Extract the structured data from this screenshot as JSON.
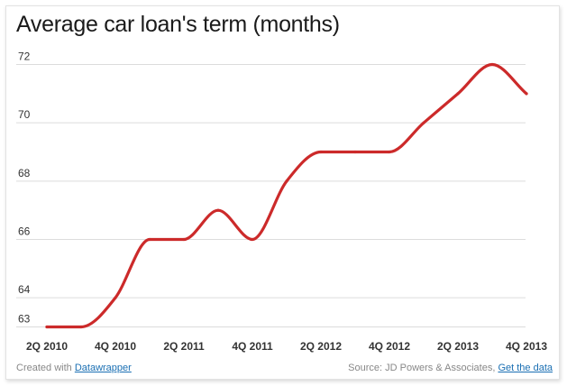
{
  "title": "Average car loan's term (months)",
  "chart_data": {
    "type": "line",
    "title": "Average car loan's term (months)",
    "xlabel": "",
    "ylabel": "",
    "ylim": [
      63,
      72.3
    ],
    "y_ticks": [
      63,
      64,
      66,
      68,
      70,
      72
    ],
    "x_tick_labels": [
      "2Q 2010",
      "4Q 2010",
      "2Q 2011",
      "4Q 2011",
      "2Q 2012",
      "4Q 2012",
      "2Q 2013",
      "4Q 2013"
    ],
    "categories": [
      "2Q 2010",
      "3Q 2010",
      "4Q 2010",
      "1Q 2011",
      "2Q 2011",
      "3Q 2011",
      "4Q 2011",
      "1Q 2012",
      "2Q 2012",
      "3Q 2012",
      "4Q 2012",
      "1Q 2013",
      "2Q 2013",
      "3Q 2013",
      "4Q 2013"
    ],
    "series": [
      {
        "values": [
          63.0,
          63.0,
          64.0,
          66.0,
          66.0,
          67.0,
          66.0,
          68.0,
          69.0,
          69.0,
          69.0,
          70.0,
          71.0,
          72.0,
          71.0
        ],
        "color": "#cc2a2a"
      }
    ],
    "grid": true,
    "legend": "none"
  },
  "footer": {
    "created_with": "Created with",
    "tool_link": "Datawrapper",
    "source": "Source: JD Powers & Associates,",
    "data_link": "Get the data"
  },
  "colors": {
    "line": "#cc2a2a",
    "grid": "#dcdcdc",
    "link": "#1a6fb3"
  }
}
